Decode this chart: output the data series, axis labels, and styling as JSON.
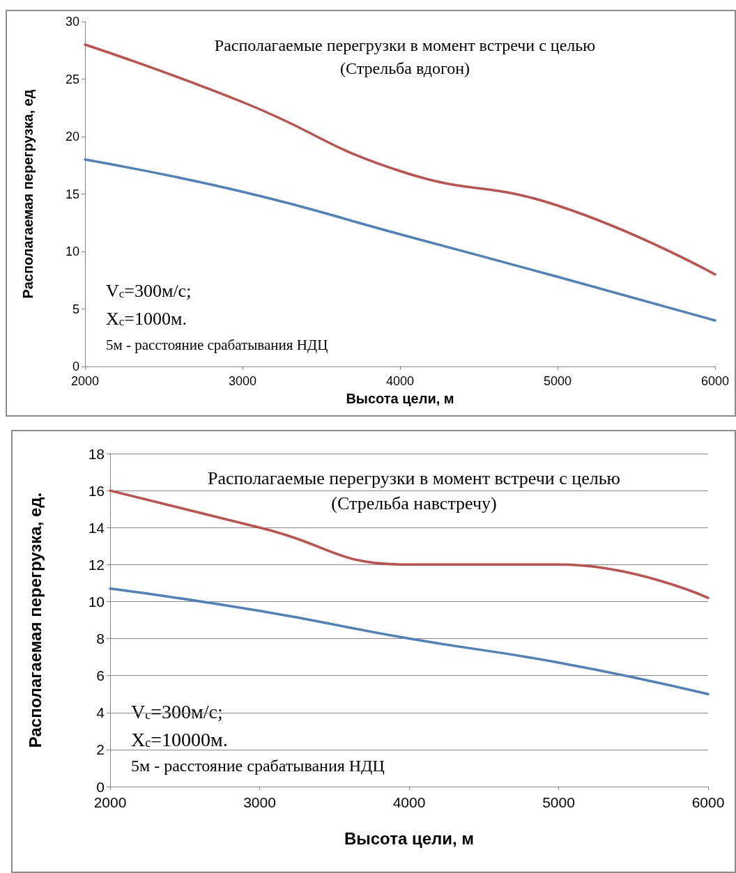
{
  "chart_data": [
    {
      "type": "line",
      "title": "Располагаемые перегрузки в момент встречи с целью\n(Стрельба вдогон)",
      "xlabel": "Высота цели, м",
      "ylabel": "Располагаемая перегрузка, ед",
      "x": [
        2000,
        3000,
        4000,
        5000,
        6000
      ],
      "series": [
        {
          "color": "#c0504d",
          "values": [
            28,
            23,
            17,
            14,
            8
          ]
        },
        {
          "color": "#4f81bd",
          "values": [
            18,
            15.2,
            11.5,
            7.8,
            4
          ]
        }
      ],
      "xlim": [
        2000,
        6000
      ],
      "xticks": [
        2000,
        3000,
        4000,
        5000,
        6000
      ],
      "ylim": [
        0,
        30
      ],
      "yticks": [
        0,
        5,
        10,
        15,
        20,
        25,
        30
      ],
      "grid": false,
      "marker": "none",
      "line_style": "solid",
      "annotations": [
        "V$_{c}$=300м/с;",
        "X$_{c}$=1000м.",
        "5м - расстояние срабатывания НДЦ"
      ]
    },
    {
      "type": "line",
      "title": "Располагаемые перегрузки в момент встречи с целью\n(Стрельба навстречу)",
      "xlabel": "Высота цели, м",
      "ylabel": "Располагаемая перегрузка, ед.",
      "x": [
        2000,
        3000,
        4000,
        5000,
        6000
      ],
      "series": [
        {
          "color": "#c0504d",
          "values": [
            16,
            14,
            12,
            12,
            10.2
          ]
        },
        {
          "color": "#4f81bd",
          "values": [
            10.7,
            9.5,
            8,
            6.7,
            5
          ]
        }
      ],
      "xlim": [
        2000,
        6000
      ],
      "xticks": [
        2000,
        3000,
        4000,
        5000,
        6000
      ],
      "ylim": [
        0,
        18
      ],
      "yticks": [
        0,
        2,
        4,
        6,
        8,
        10,
        12,
        14,
        16,
        18
      ],
      "grid": "y",
      "marker": "none",
      "line_style": "solid",
      "annotations": [
        "V$_{c}$=300м/с;",
        "X$_{c}$=10000м.",
        "5м - расстояние срабатывания НДЦ"
      ]
    }
  ]
}
